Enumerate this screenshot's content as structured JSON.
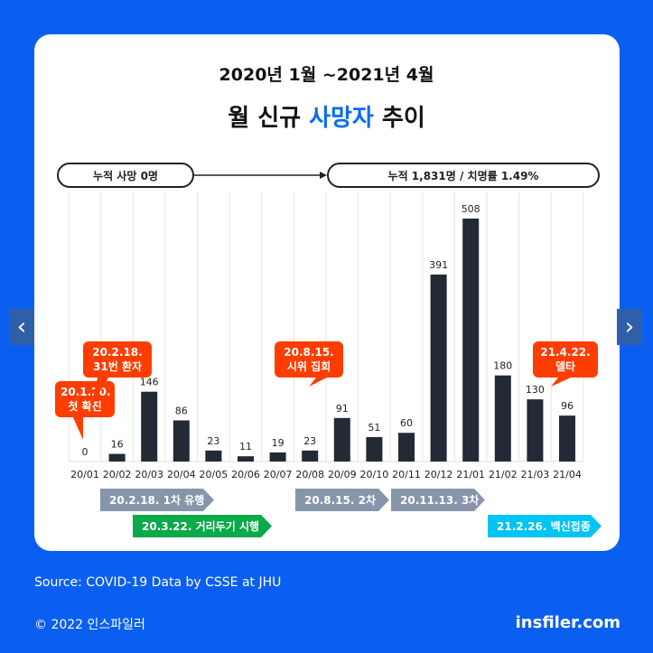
{
  "header": {
    "subtitle": "2020년 1월 ~2021년 4월",
    "title_pre": "월 신규 ",
    "title_hl": "사망자",
    "title_post": " 추이"
  },
  "pills": {
    "start": "누적 사망 0명",
    "end": "누적 1,831명 / 치명률 1.49%"
  },
  "callouts": [
    {
      "line1": "20.1.20.",
      "line2": "첫 확진"
    },
    {
      "line1": "20.2.18.",
      "line2": "31번 환자"
    },
    {
      "line1": "20.8.15.",
      "line2": "시위 집회"
    },
    {
      "line1": "21.4.22.",
      "line2": "델타"
    }
  ],
  "tags": [
    "20.2.18. 1차 유행",
    "20.3.22. 거리두기 시행",
    "20.8.15. 2차",
    "20.11.13. 3차",
    "21.2.26. 백신접종"
  ],
  "colors": {
    "bar": "#222a36",
    "callout": "#ff3d00",
    "tag_gray": "#8795ab",
    "tag_green": "#0aaa4a",
    "tag_cyan": "#00c4f4",
    "background": "#0a5ff0",
    "accent": "#0a6cf0"
  },
  "chart_data": {
    "type": "bar",
    "categories": [
      "20/01",
      "20/02",
      "20/03",
      "20/04",
      "20/05",
      "20/06",
      "20/07",
      "20/08",
      "20/09",
      "20/10",
      "20/11",
      "20/12",
      "21/01",
      "21/02",
      "21/03",
      "21/04"
    ],
    "values": [
      0,
      16,
      146,
      86,
      23,
      11,
      19,
      23,
      91,
      51,
      60,
      391,
      508,
      180,
      130,
      96
    ],
    "title": "월 신규 사망자 추이",
    "ylim": [
      0,
      508
    ]
  },
  "footer": {
    "source": "Source:  COVID-19 Data by CSSE at JHU",
    "copyright": "© 2022 인스파일러",
    "brand": "insfiler.com"
  },
  "nav": {
    "prev": "‹",
    "next": "›"
  }
}
